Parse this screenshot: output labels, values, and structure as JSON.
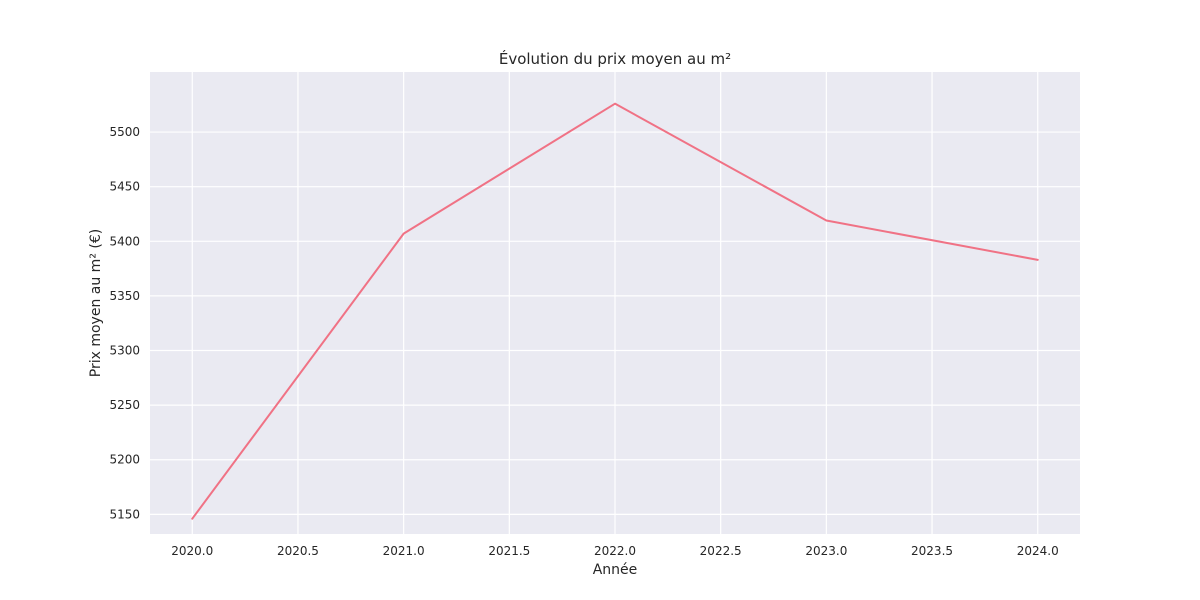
{
  "chart_data": {
    "type": "line",
    "title": "Évolution du prix moyen au m²",
    "xlabel": "Année",
    "ylabel": "Prix moyen au m² (€)",
    "x": [
      2020,
      2021,
      2022,
      2023,
      2024
    ],
    "series": [
      {
        "values": [
          5146,
          5407,
          5526,
          5419,
          5383
        ],
        "color": "#f07285"
      }
    ],
    "xlim": [
      2019.8,
      2024.2
    ],
    "ylim": [
      5132,
      5555
    ],
    "x_ticks": [
      "2020.0",
      "2020.5",
      "2021.0",
      "2021.5",
      "2022.0",
      "2022.5",
      "2023.0",
      "2023.5",
      "2024.0"
    ],
    "y_ticks": [
      "5150",
      "5200",
      "5250",
      "5300",
      "5350",
      "5400",
      "5450",
      "5500"
    ],
    "grid": true,
    "legend": "none",
    "background_color": "#eaeaf2",
    "grid_color": "#ffffff"
  }
}
